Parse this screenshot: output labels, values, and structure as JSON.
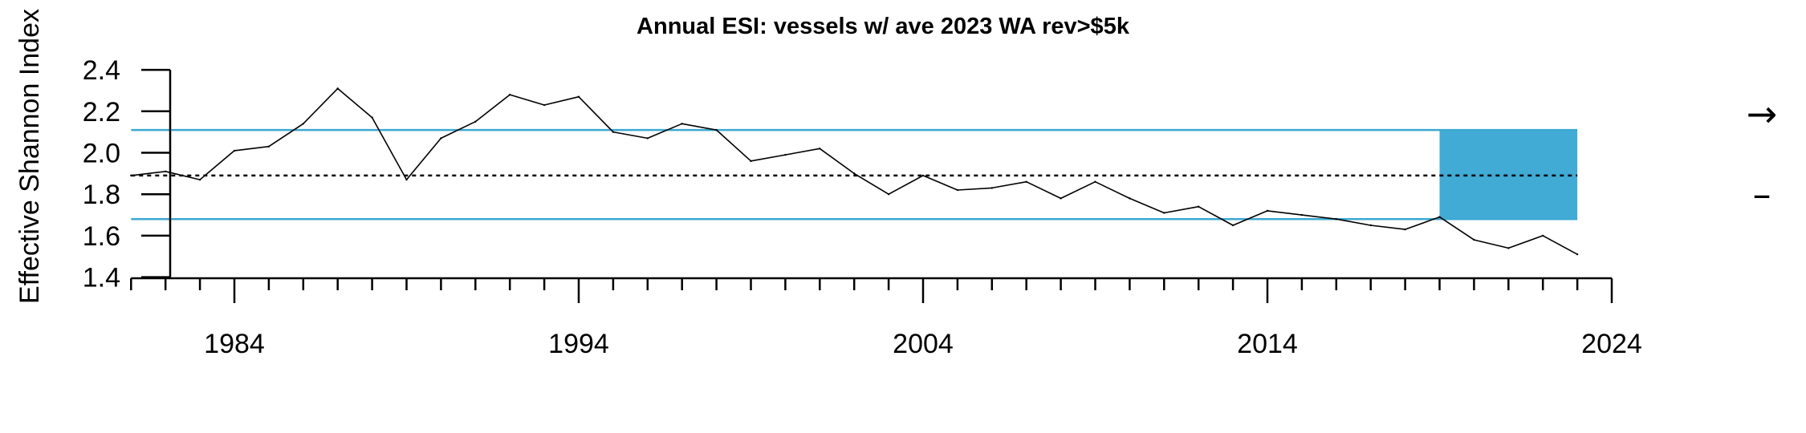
{
  "chart_data": {
    "type": "line",
    "title": "Annual ESI: vessels w/ ave 2023 WA rev>$5k",
    "xlabel": "",
    "ylabel": "Effective Shannon Index",
    "xlim": [
      1981,
      2024
    ],
    "ylim": [
      1.4,
      2.4
    ],
    "x_ticks": [
      1984,
      1994,
      2004,
      2014,
      2024
    ],
    "x_tick_labels": [
      "1984",
      "1994",
      "2004",
      "2014",
      "2024"
    ],
    "y_ticks": [
      1.4,
      1.6,
      1.8,
      2.0,
      2.2,
      2.4
    ],
    "y_tick_labels": [
      "1.4",
      "1.6",
      "1.8",
      "2.0",
      "2.2",
      "2.4"
    ],
    "grid": false,
    "series": [
      {
        "x": [
          1981,
          1982,
          1983,
          1984,
          1985,
          1986,
          1987,
          1988,
          1989,
          1990,
          1991,
          1992,
          1993,
          1994,
          1995,
          1996,
          1997,
          1998,
          1999,
          2000,
          2001,
          2002,
          2003,
          2004,
          2005,
          2006,
          2007,
          2008,
          2009,
          2010,
          2011,
          2012,
          2013,
          2014,
          2015,
          2016,
          2017,
          2018,
          2019,
          2020,
          2021,
          2022,
          2023
        ],
        "values": [
          1.89,
          1.91,
          1.87,
          2.01,
          2.03,
          2.14,
          2.31,
          2.17,
          1.87,
          2.07,
          2.15,
          2.28,
          2.23,
          2.27,
          2.1,
          2.07,
          2.14,
          2.11,
          1.96,
          1.99,
          2.02,
          1.9,
          1.8,
          1.89,
          1.82,
          1.83,
          1.86,
          1.78,
          1.86,
          1.78,
          1.71,
          1.74,
          1.65,
          1.72,
          1.7,
          1.68,
          1.65,
          1.63,
          1.69,
          1.58,
          1.54,
          1.6,
          1.51
        ]
      }
    ],
    "reference_lines": {
      "mean": 1.89,
      "upper_sd": 2.11,
      "lower_sd": 1.68
    },
    "highlight_region": {
      "x_start": 2019,
      "x_end": 2023,
      "y_low": 1.68,
      "y_high": 2.11
    },
    "trend_indicators": {
      "mean_trend_symbol": "→",
      "sd_trend_symbol": "–"
    },
    "colors": {
      "series_line": "#000000",
      "sd_lines": "#3ba8d1",
      "highlight_fill": "#41abd5",
      "mean_line": "#000000",
      "axes": "#000000"
    }
  }
}
